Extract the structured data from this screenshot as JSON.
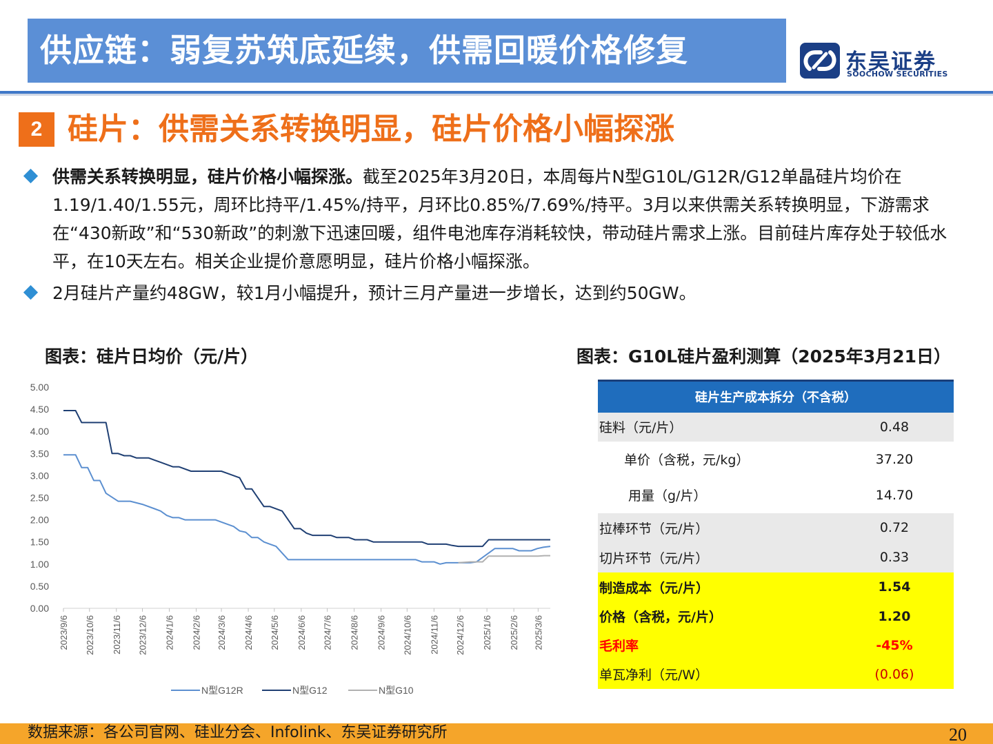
{
  "header": {
    "title": "供应链：弱复苏筑底延续，供需回暖价格修复",
    "logo_cn": "东吴证券",
    "logo_en": "SOOCHOW SECURITIES"
  },
  "section": {
    "number": "2",
    "title": "硅片：供需关系转换明显，硅片价格小幅探涨"
  },
  "bullets": [
    {
      "bold": "供需关系转换明显，硅片价格小幅探涨。",
      "text": "截至2025年3月20日，本周每片N型G10L/G12R/G12单晶硅片均价在1.19/1.40/1.55元，周环比持平/1.45%/持平，月环比0.85%/7.69%/持平。3月以来供需关系转换明显，下游需求在“430新政”和“530新政”的刺激下迅速回暖，组件电池库存消耗较快，带动硅片需求上涨。目前硅片库存处于较低水平，在10天左右。相关企业提价意愿明显，硅片价格小幅探涨。"
    },
    {
      "bold": "",
      "text": "2月硅片产量约48GW，较1月小幅提升，预计三月产量进一步增长，达到约50GW。"
    }
  ],
  "chart_title": "图表：硅片日均价（元/片）",
  "table_title": "图表：G10L硅片盈利测算（2025年3月21日）",
  "chart_data": {
    "type": "line",
    "title": "图表：硅片日均价（元/片）",
    "xlabel": "",
    "ylabel": "",
    "ylim": [
      0,
      5
    ],
    "y_ticks": [
      "5.00",
      "4.50",
      "4.00",
      "3.50",
      "3.00",
      "2.50",
      "2.00",
      "1.50",
      "1.00",
      "0.50",
      "0.00"
    ],
    "x_ticks": [
      "2023/9/6",
      "2023/10/6",
      "2023/11/6",
      "2023/12/6",
      "2024/1/6",
      "2024/2/6",
      "2024/3/6",
      "2024/4/6",
      "2024/5/6",
      "2024/6/6",
      "2024/7/6",
      "2024/8/6",
      "2024/9/6",
      "2024/10/6",
      "2024/11/6",
      "2024/12/6",
      "2025/1/6",
      "2025/2/6",
      "2025/3/6"
    ],
    "x_range": [
      "2023/9/6",
      "2025/3/20"
    ],
    "grid": false,
    "legend_position": "bottom",
    "series": [
      {
        "name": "N型G12R",
        "color": "#5b8fd0",
        "points": [
          [
            "2023/9/6",
            3.47
          ],
          [
            "2023/9/20",
            3.47
          ],
          [
            "2023/9/27",
            3.18
          ],
          [
            "2023/10/4",
            3.18
          ],
          [
            "2023/10/11",
            2.89
          ],
          [
            "2023/10/18",
            2.89
          ],
          [
            "2023/10/25",
            2.6
          ],
          [
            "2023/11/8",
            2.42
          ],
          [
            "2023/11/22",
            2.42
          ],
          [
            "2023/12/6",
            2.35
          ],
          [
            "2023/12/20",
            2.25
          ],
          [
            "2023/12/27",
            2.2
          ],
          [
            "2024/1/3",
            2.1
          ],
          [
            "2024/1/10",
            2.05
          ],
          [
            "2024/1/17",
            2.05
          ],
          [
            "2024/1/24",
            2.0
          ],
          [
            "2024/2/28",
            2.0
          ],
          [
            "2024/3/6",
            1.95
          ],
          [
            "2024/3/20",
            1.85
          ],
          [
            "2024/3/27",
            1.75
          ],
          [
            "2024/4/3",
            1.72
          ],
          [
            "2024/4/10",
            1.6
          ],
          [
            "2024/4/17",
            1.6
          ],
          [
            "2024/4/24",
            1.5
          ],
          [
            "2024/5/1",
            1.45
          ],
          [
            "2024/5/8",
            1.4
          ],
          [
            "2024/5/22",
            1.1
          ],
          [
            "2024/10/16",
            1.1
          ],
          [
            "2024/10/23",
            1.05
          ],
          [
            "2024/11/6",
            1.05
          ],
          [
            "2024/11/13",
            1.0
          ],
          [
            "2024/11/20",
            1.03
          ],
          [
            "2024/12/18",
            1.03
          ],
          [
            "2024/12/25",
            1.05
          ],
          [
            "2025/1/1",
            1.15
          ],
          [
            "2025/1/8",
            1.25
          ],
          [
            "2025/1/15",
            1.35
          ],
          [
            "2025/2/5",
            1.35
          ],
          [
            "2025/2/12",
            1.3
          ],
          [
            "2025/2/26",
            1.3
          ],
          [
            "2025/3/5",
            1.35
          ],
          [
            "2025/3/12",
            1.38
          ],
          [
            "2025/3/20",
            1.4
          ]
        ]
      },
      {
        "name": "N型G12",
        "color": "#1f3f73",
        "points": [
          [
            "2023/9/6",
            4.47
          ],
          [
            "2023/9/20",
            4.47
          ],
          [
            "2023/9/27",
            4.2
          ],
          [
            "2023/10/25",
            4.2
          ],
          [
            "2023/11/1",
            3.5
          ],
          [
            "2023/11/8",
            3.5
          ],
          [
            "2023/11/15",
            3.45
          ],
          [
            "2023/11/22",
            3.45
          ],
          [
            "2023/11/29",
            3.4
          ],
          [
            "2023/12/13",
            3.4
          ],
          [
            "2023/12/20",
            3.35
          ],
          [
            "2023/12/27",
            3.3
          ],
          [
            "2024/1/10",
            3.2
          ],
          [
            "2024/1/17",
            3.2
          ],
          [
            "2024/1/31",
            3.1
          ],
          [
            "2024/3/6",
            3.1
          ],
          [
            "2024/3/13",
            3.05
          ],
          [
            "2024/3/27",
            2.95
          ],
          [
            "2024/4/3",
            2.7
          ],
          [
            "2024/4/10",
            2.7
          ],
          [
            "2024/4/24",
            2.3
          ],
          [
            "2024/5/1",
            2.3
          ],
          [
            "2024/5/15",
            2.2
          ],
          [
            "2024/5/29",
            1.8
          ],
          [
            "2024/6/5",
            1.8
          ],
          [
            "2024/6/12",
            1.7
          ],
          [
            "2024/6/19",
            1.65
          ],
          [
            "2024/7/10",
            1.65
          ],
          [
            "2024/7/17",
            1.6
          ],
          [
            "2024/7/31",
            1.6
          ],
          [
            "2024/8/7",
            1.55
          ],
          [
            "2024/8/21",
            1.55
          ],
          [
            "2024/8/28",
            1.5
          ],
          [
            "2024/10/23",
            1.5
          ],
          [
            "2024/10/30",
            1.45
          ],
          [
            "2024/11/20",
            1.45
          ],
          [
            "2024/11/27",
            1.42
          ],
          [
            "2024/12/4",
            1.4
          ],
          [
            "2024/12/25",
            1.4
          ],
          [
            "2025/1/1",
            1.4
          ],
          [
            "2025/1/8",
            1.55
          ],
          [
            "2025/3/20",
            1.55
          ]
        ]
      },
      {
        "name": "N型G10",
        "color": "#b0b0b0",
        "points": [
          [
            "2024/12/4",
            1.03
          ],
          [
            "2024/12/18",
            1.05
          ],
          [
            "2024/12/25",
            1.05
          ],
          [
            "2025/1/1",
            1.05
          ],
          [
            "2025/1/8",
            1.18
          ],
          [
            "2025/3/6",
            1.18
          ],
          [
            "2025/3/13",
            1.19
          ],
          [
            "2025/3/20",
            1.19
          ]
        ]
      }
    ]
  },
  "table": {
    "header": "硅片生产成本拆分（不含税）",
    "rows": [
      {
        "label": "硅料（元/片）",
        "value": "0.48",
        "style": "grey"
      },
      {
        "label": "单价（含税，元/kg）",
        "value": "37.20",
        "style": "white-indent"
      },
      {
        "label": "用量（g/片）",
        "value": "14.70",
        "style": "white-indent2"
      },
      {
        "label": "拉棒环节（元/片）",
        "value": "0.72",
        "style": "grey"
      },
      {
        "label": "切片环节（元/片）",
        "value": "0.33",
        "style": "grey"
      },
      {
        "label": "制造成本（元/片）",
        "value": "1.54",
        "style": "yellow"
      },
      {
        "label": "价格（含税，元/片）",
        "value": "1.20",
        "style": "yellow"
      },
      {
        "label": "毛利率",
        "value": "-45%",
        "style": "yellow-red"
      },
      {
        "label": "单瓦净利（元/W）",
        "value": "(0.06)",
        "style": "yellow-plain"
      }
    ]
  },
  "footer": {
    "source": "数据来源：各公司官网、硅业分会、Infolink、东吴证券研究所",
    "page": "20"
  }
}
